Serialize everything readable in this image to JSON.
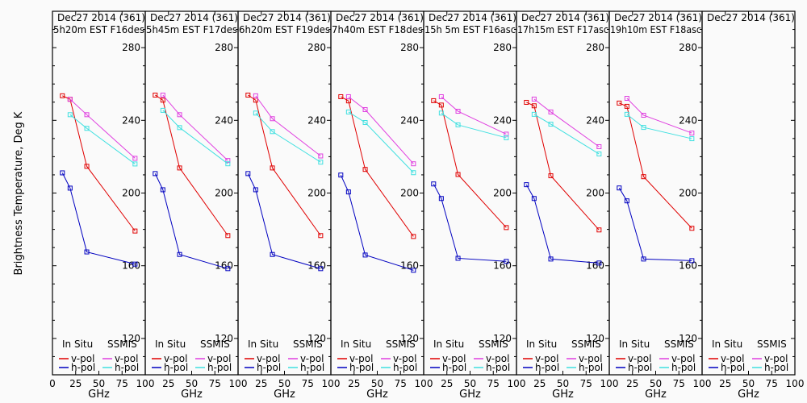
{
  "chart_data": {
    "type": "line",
    "ylabel": "Brightness Temperature, Deg K",
    "xlabel": "GHz",
    "xlim": [
      0,
      100
    ],
    "ylim": [
      100,
      300
    ],
    "xticks": [
      0,
      25,
      50,
      75,
      100
    ],
    "yticks": [
      120,
      160,
      200,
      240,
      280
    ],
    "grid": false,
    "legend": {
      "placement": "bottom",
      "groups": [
        {
          "title": "In Situ",
          "entries": [
            {
              "label": "v-pol",
              "color": "#e00000"
            },
            {
              "label": "h-pol",
              "color": "#0000c0"
            }
          ]
        },
        {
          "title": "SSMIS",
          "entries": [
            {
              "label": "v-pol",
              "color": "#e040e0"
            },
            {
              "label": "h-pol",
              "color": "#40e0e0"
            }
          ]
        }
      ]
    },
    "panels": [
      {
        "title_line1": "Dec27 2014 (361)",
        "title_line2": "5h20m EST F16des",
        "series": [
          {
            "name": "In Situ v-pol",
            "color": "#e00000",
            "x": [
              10.7,
              19,
              37,
              89
            ],
            "y": [
              253.5,
              251.6,
              214.7,
              179.1
            ]
          },
          {
            "name": "In Situ h-pol",
            "color": "#0000c0",
            "x": [
              10.7,
              19,
              37,
              89
            ],
            "y": [
              211.1,
              202.7,
              167.6,
              160.9
            ]
          },
          {
            "name": "SSMIS v-pol",
            "color": "#e040e0",
            "x": [
              19,
              37,
              89
            ],
            "y": [
              251.6,
              243.1,
              219.1
            ]
          },
          {
            "name": "SSMIS h-pol",
            "color": "#40e0e0",
            "x": [
              19,
              37,
              89
            ],
            "y": [
              243.1,
              235.6,
              216.0
            ]
          }
        ]
      },
      {
        "title_line1": "Dec27 2014 (361)",
        "title_line2": "5h45m EST F17des",
        "series": [
          {
            "name": "In Situ v-pol",
            "color": "#e00000",
            "x": [
              10.7,
              19,
              37,
              89
            ],
            "y": [
              253.9,
              251.1,
              213.8,
              176.6
            ]
          },
          {
            "name": "In Situ h-pol",
            "color": "#0000c0",
            "x": [
              10.7,
              19,
              37,
              89
            ],
            "y": [
              210.7,
              201.8,
              166.2,
              158.4
            ]
          },
          {
            "name": "SSMIS v-pol",
            "color": "#e040e0",
            "x": [
              19,
              37,
              89
            ],
            "y": [
              253.9,
              243.1,
              217.9
            ]
          },
          {
            "name": "SSMIS h-pol",
            "color": "#40e0e0",
            "x": [
              19,
              37,
              89
            ],
            "y": [
              245.5,
              236.0,
              216.1
            ]
          }
        ]
      },
      {
        "title_line1": "Dec27 2014 (361)",
        "title_line2": "6h20m EST F19des",
        "series": [
          {
            "name": "In Situ v-pol",
            "color": "#e00000",
            "x": [
              10.7,
              19,
              37,
              89
            ],
            "y": [
              253.9,
              251.1,
              213.8,
              176.6
            ]
          },
          {
            "name": "In Situ h-pol",
            "color": "#0000c0",
            "x": [
              10.7,
              19,
              37,
              89
            ],
            "y": [
              210.7,
              201.8,
              166.2,
              158.4
            ]
          },
          {
            "name": "SSMIS v-pol",
            "color": "#e040e0",
            "x": [
              19,
              37,
              89
            ],
            "y": [
              253.5,
              240.9,
              220.4
            ]
          },
          {
            "name": "SSMIS h-pol",
            "color": "#40e0e0",
            "x": [
              19,
              37,
              89
            ],
            "y": [
              244.0,
              233.8,
              217.0
            ]
          }
        ]
      },
      {
        "title_line1": "Dec27 2014 (361)",
        "title_line2": "7h40m EST F18des",
        "series": [
          {
            "name": "In Situ v-pol",
            "color": "#e00000",
            "x": [
              10.7,
              19,
              37,
              89
            ],
            "y": [
              253.0,
              250.7,
              213.0,
              176.1
            ]
          },
          {
            "name": "In Situ h-pol",
            "color": "#0000c0",
            "x": [
              10.7,
              19,
              37,
              89
            ],
            "y": [
              209.9,
              200.6,
              165.9,
              157.5
            ]
          },
          {
            "name": "SSMIS v-pol",
            "color": "#e040e0",
            "x": [
              19,
              37,
              89
            ],
            "y": [
              253.0,
              245.9,
              216.1
            ]
          },
          {
            "name": "SSMIS h-pol",
            "color": "#40e0e0",
            "x": [
              19,
              37,
              89
            ],
            "y": [
              244.6,
              238.8,
              211.2
            ]
          }
        ]
      },
      {
        "title_line1": "Dec27 2014 (361)",
        "title_line2": "15h 5m EST F16asc",
        "series": [
          {
            "name": "In Situ v-pol",
            "color": "#e00000",
            "x": [
              10.7,
              19,
              37,
              89
            ],
            "y": [
              250.8,
              248.4,
              210.2,
              181.0
            ]
          },
          {
            "name": "In Situ h-pol",
            "color": "#0000c0",
            "x": [
              10.7,
              19,
              37,
              89
            ],
            "y": [
              205.0,
              197.0,
              164.1,
              162.4
            ]
          },
          {
            "name": "SSMIS v-pol",
            "color": "#e040e0",
            "x": [
              19,
              37,
              89
            ],
            "y": [
              253.0,
              245.0,
              232.4
            ]
          },
          {
            "name": "SSMIS h-pol",
            "color": "#40e0e0",
            "x": [
              19,
              37,
              89
            ],
            "y": [
              244.0,
              237.5,
              230.4
            ]
          }
        ]
      },
      {
        "title_line1": "Dec27 2014 (361)",
        "title_line2": "17h15m EST F17asc",
        "series": [
          {
            "name": "In Situ v-pol",
            "color": "#e00000",
            "x": [
              10.7,
              19,
              37,
              89
            ],
            "y": [
              249.9,
              248.0,
              209.5,
              179.7
            ]
          },
          {
            "name": "In Situ h-pol",
            "color": "#0000c0",
            "x": [
              10.7,
              19,
              37,
              89
            ],
            "y": [
              204.6,
              197.0,
              163.7,
              161.5
            ]
          },
          {
            "name": "SSMIS v-pol",
            "color": "#e040e0",
            "x": [
              19,
              37,
              89
            ],
            "y": [
              251.7,
              244.6,
              225.5
            ]
          },
          {
            "name": "SSMIS h-pol",
            "color": "#40e0e0",
            "x": [
              19,
              37,
              89
            ],
            "y": [
              243.3,
              237.9,
              221.5
            ]
          }
        ]
      },
      {
        "title_line1": "Dec27 2014 (361)",
        "title_line2": "19h10m EST F18asc",
        "series": [
          {
            "name": "In Situ v-pol",
            "color": "#e00000",
            "x": [
              10.7,
              19,
              37,
              89
            ],
            "y": [
              249.5,
              247.7,
              209.0,
              180.6
            ]
          },
          {
            "name": "In Situ h-pol",
            "color": "#0000c0",
            "x": [
              10.7,
              19,
              37,
              89
            ],
            "y": [
              202.8,
              195.7,
              163.7,
              162.8
            ]
          },
          {
            "name": "SSMIS v-pol",
            "color": "#e040e0",
            "x": [
              19,
              37,
              89
            ],
            "y": [
              252.1,
              242.8,
              233.0
            ]
          },
          {
            "name": "SSMIS h-pol",
            "color": "#40e0e0",
            "x": [
              19,
              37,
              89
            ],
            "y": [
              243.3,
              236.1,
              229.9
            ]
          }
        ]
      },
      {
        "title_line1": "Dec27 2014 (361)",
        "title_line2": "",
        "series": []
      }
    ]
  }
}
